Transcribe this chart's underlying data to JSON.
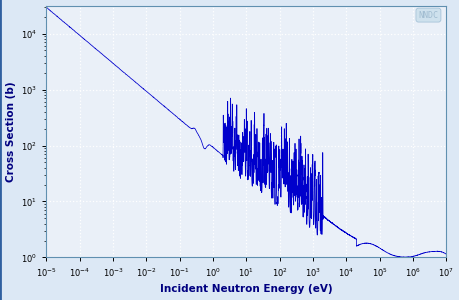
{
  "title": "",
  "xlabel": "Incident Neutron Energy (eV)",
  "ylabel": "Cross Section (b)",
  "xlim_log": [
    -5,
    7
  ],
  "ylim_log": [
    0,
    4.5
  ],
  "line_color": "#0000cc",
  "background_color": "#dce8f5",
  "plot_bg_color": "#eaf0f8",
  "grid_color": "#ffffff",
  "watermark": "NNDC",
  "watermark_color": "#a0bcd0"
}
